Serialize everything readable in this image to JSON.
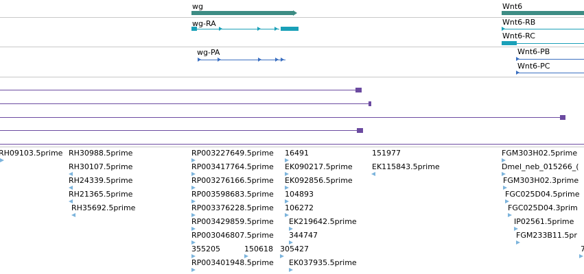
{
  "genes": {
    "wg": "wg",
    "wnt6": "Wnt6"
  },
  "transcripts": {
    "wg_ra": "wg-RA",
    "wnt6_rb": "Wnt6-RB",
    "wnt6_rc": "Wnt6-RC",
    "wg_pa": "wg-PA",
    "wnt6_pb": "Wnt6-PB",
    "wnt6_pc": "Wnt6-PC"
  },
  "ests": [
    "RH09103.5prime",
    "RH30988.5prime",
    "RH30107.5prime",
    "RH24339.5prime",
    "RH21365.5prime",
    "RH35692.5prime",
    "RP003227649.5prime",
    "RP003417764.5prime",
    "RP003276166.5prime",
    "RP003598683.5prime",
    "RP003376228.5prime",
    "RP003429859.5prime",
    "RP003046807.5prime",
    "355205",
    "150618",
    "RP003401948.5prime",
    "16491",
    "EK090217.5prime",
    "EK092856.5prime",
    "104893",
    "106272",
    "EK219642.5prime",
    "344747",
    "305427",
    "EK037935.5prime",
    "151977",
    "EK115843.5prime",
    "FGM303H02.5prime",
    "Dmel_neb_015266_(",
    "FGM303H02.3prime",
    "FGC025D04.5prime",
    "FGC025D04.3prim",
    "IP02561.5prime",
    "FGM233B11.5pr",
    "7"
  ]
}
